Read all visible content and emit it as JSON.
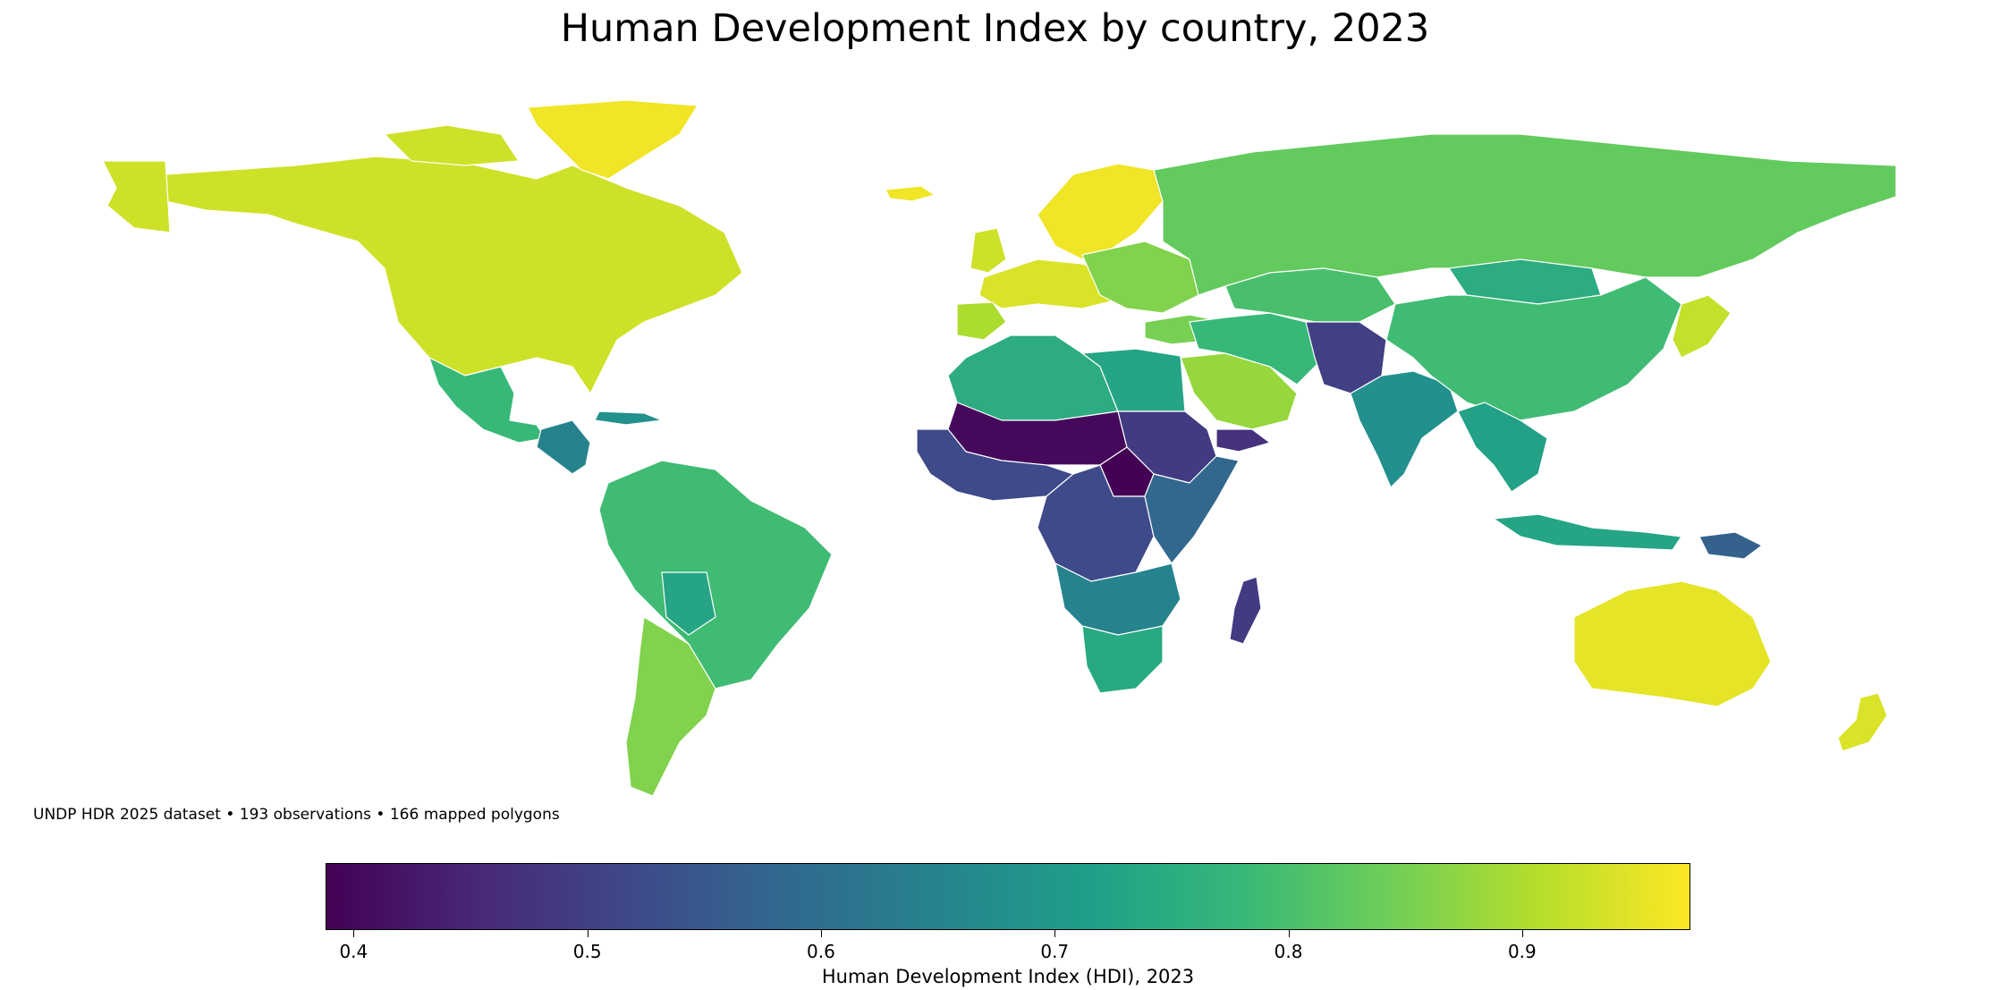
{
  "title": "Human Development Index by country, 2023",
  "footnote": "UNDP HDR 2025 dataset • 193 observations • 166 mapped polygons",
  "colorbar": {
    "label": "Human Development Index (HDI), 2023",
    "min": 0.388,
    "max": 0.972,
    "ticks": [
      {
        "value": 0.4,
        "label": "0.4"
      },
      {
        "value": 0.5,
        "label": "0.5"
      },
      {
        "value": 0.6,
        "label": "0.6"
      },
      {
        "value": 0.7,
        "label": "0.7"
      },
      {
        "value": 0.8,
        "label": "0.8"
      },
      {
        "value": 0.9,
        "label": "0.9"
      }
    ],
    "colormap": [
      "#440154",
      "#482878",
      "#3e4989",
      "#31688e",
      "#26828e",
      "#1f9e89",
      "#35b779",
      "#6ece58",
      "#b5de2b",
      "#fde725"
    ]
  },
  "regions": [
    {
      "name": "north-america",
      "hdi": 0.93
    },
    {
      "name": "greenland",
      "hdi": 0.96
    },
    {
      "name": "alaska",
      "hdi": 0.93
    },
    {
      "name": "mexico",
      "hdi": 0.78
    },
    {
      "name": "central-america",
      "hdi": 0.65
    },
    {
      "name": "caribbean",
      "hdi": 0.68
    },
    {
      "name": "south-america-north",
      "hdi": 0.79
    },
    {
      "name": "bolivia",
      "hdi": 0.73
    },
    {
      "name": "southern-cone",
      "hdi": 0.86
    },
    {
      "name": "western-europe",
      "hdi": 0.94
    },
    {
      "name": "uk-ireland",
      "hdi": 0.93
    },
    {
      "name": "scandinavia",
      "hdi": 0.96
    },
    {
      "name": "iceland",
      "hdi": 0.96
    },
    {
      "name": "iberia",
      "hdi": 0.9
    },
    {
      "name": "eastern-europe",
      "hdi": 0.86
    },
    {
      "name": "russia",
      "hdi": 0.83
    },
    {
      "name": "turkey",
      "hdi": 0.85
    },
    {
      "name": "north-africa",
      "hdi": 0.75
    },
    {
      "name": "egypt-libya",
      "hdi": 0.73
    },
    {
      "name": "sahel",
      "hdi": 0.4
    },
    {
      "name": "west-africa",
      "hdi": 0.52
    },
    {
      "name": "central-africa",
      "hdi": 0.52
    },
    {
      "name": "south-sudan",
      "hdi": 0.39
    },
    {
      "name": "ethiopia",
      "hdi": 0.49
    },
    {
      "name": "east-africa",
      "hdi": 0.58
    },
    {
      "name": "southern-africa",
      "hdi": 0.65
    },
    {
      "name": "south-africa",
      "hdi": 0.74
    },
    {
      "name": "madagascar",
      "hdi": 0.49
    },
    {
      "name": "saudi-gulf",
      "hdi": 0.88
    },
    {
      "name": "yemen",
      "hdi": 0.47
    },
    {
      "name": "iran-iraq",
      "hdi": 0.78
    },
    {
      "name": "central-asia",
      "hdi": 0.8
    },
    {
      "name": "afghanistan-pakistan",
      "hdi": 0.5
    },
    {
      "name": "india",
      "hdi": 0.68
    },
    {
      "name": "china",
      "hdi": 0.79
    },
    {
      "name": "mongolia",
      "hdi": 0.75
    },
    {
      "name": "southeast-asia",
      "hdi": 0.72
    },
    {
      "name": "indonesia",
      "hdi": 0.73
    },
    {
      "name": "papua-new-guinea",
      "hdi": 0.57
    },
    {
      "name": "japan-korea",
      "hdi": 0.92
    },
    {
      "name": "australia",
      "hdi": 0.95
    },
    {
      "name": "new-zealand",
      "hdi": 0.94
    }
  ]
}
